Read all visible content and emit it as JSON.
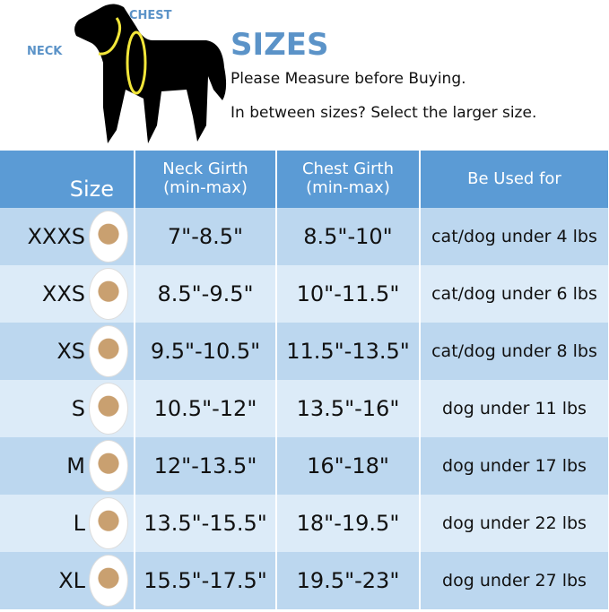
{
  "header": {
    "title": "SIZES",
    "line1": "Please Measure before Buying.",
    "line2": "In between sizes? Select the larger size.",
    "neck_label": "NECK",
    "chest_label": "CHEST"
  },
  "colors": {
    "header_bg": "#5b9bd5",
    "row_dark": "#bcd7ef",
    "row_light": "#dcebf8",
    "accent": "#5b93c8",
    "collar": "#f2e63a"
  },
  "table": {
    "columns": [
      "Size",
      "Neck Girth\n(min-max)",
      "Chest Girth\n(min-max)",
      "Be Used for"
    ],
    "col_neck_1": "Neck Girth",
    "col_neck_2": "(min-max)",
    "col_chest_1": "Chest Girth",
    "col_chest_2": "(min-max)",
    "rows": [
      {
        "size": "XXXS",
        "neck": "7\"-8.5\"",
        "chest": "8.5\"-10\"",
        "use": "cat/dog under 4 lbs"
      },
      {
        "size": "XXS",
        "neck": "8.5\"-9.5\"",
        "chest": "10\"-11.5\"",
        "use": "cat/dog under 6 lbs"
      },
      {
        "size": "XS",
        "neck": "9.5\"-10.5\"",
        "chest": "11.5\"-13.5\"",
        "use": "cat/dog under 8 lbs"
      },
      {
        "size": "S",
        "neck": "10.5\"-12\"",
        "chest": "13.5\"-16\"",
        "use": "dog under 11 lbs"
      },
      {
        "size": "M",
        "neck": "12\"-13.5\"",
        "chest": "16\"-18\"",
        "use": "dog under 17 lbs"
      },
      {
        "size": "L",
        "neck": "13.5\"-15.5\"",
        "chest": "18\"-19.5\"",
        "use": "dog under 22 lbs"
      },
      {
        "size": "XL",
        "neck": "15.5\"-17.5\"",
        "chest": "19.5\"-23\"",
        "use": "dog under 27 lbs"
      }
    ]
  }
}
